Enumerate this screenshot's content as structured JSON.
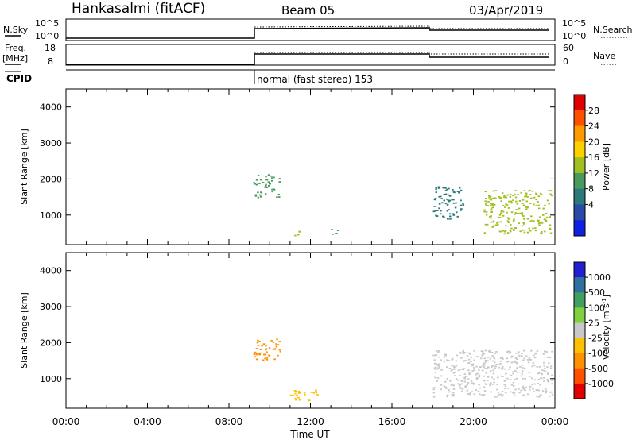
{
  "header": {
    "station": "Hankasalmi (fitACF)",
    "beam": "Beam 05",
    "date": "03/Apr/2019"
  },
  "strips": {
    "nsky_label": "N.Sky",
    "nsky_ticks": [
      "10^5",
      "10^0"
    ],
    "nsearch_label": "N.Search",
    "nsearch_ticks": [
      "10^5",
      "10^0"
    ],
    "freq_label": "Freq.",
    "freq_unit": "[MHz]",
    "freq_ticks": [
      "18",
      "8"
    ],
    "nave_label": "Nave",
    "nave_ticks": [
      "60",
      "0"
    ],
    "cpid_label": "CPID",
    "cpid_text": "normal (fast stereo) 153"
  },
  "chart_data": [
    {
      "type": "heatmap",
      "name": "power-panel",
      "ylabel": "Slant Range [km]",
      "yticks": [
        "4000",
        "3000",
        "2000",
        "1000"
      ],
      "ylim": [
        180,
        4500
      ],
      "colorbar_label": "Power [dB]",
      "colorbar_ticks": [
        "28",
        "24",
        "20",
        "16",
        "12",
        "8",
        "4"
      ],
      "colorbar_colors": [
        "#e00000",
        "#ff5000",
        "#ff9a00",
        "#ffd000",
        "#a0c020",
        "#4a9a60",
        "#2a7a7a",
        "#2a4aa8",
        "#1020e0"
      ],
      "echo_regions": [
        {
          "t_start": "09:10",
          "t_end": "10:30",
          "range_km": [
            1500,
            2150
          ],
          "level_db": 10
        },
        {
          "t_start": "11:10",
          "t_end": "11:35",
          "range_km": [
            450,
            650
          ],
          "level_db": 14
        },
        {
          "t_start": "13:00",
          "t_end": "13:20",
          "range_km": [
            450,
            650
          ],
          "level_db": 12
        },
        {
          "t_start": "18:00",
          "t_end": "19:30",
          "range_km": [
            900,
            1800
          ],
          "level_db": 6
        },
        {
          "t_start": "20:30",
          "t_end": "23:50",
          "range_km": [
            500,
            1700
          ],
          "level_db": 14
        }
      ]
    },
    {
      "type": "heatmap",
      "name": "velocity-panel",
      "ylabel": "Slant Range [km]",
      "yticks": [
        "4000",
        "3000",
        "2000",
        "1000"
      ],
      "ylim": [
        180,
        4500
      ],
      "xlabel": "Time UT",
      "xticks": [
        "00:00",
        "04:00",
        "08:00",
        "12:00",
        "16:00",
        "20:00",
        "00:00"
      ],
      "colorbar_label": "Velocity [m s",
      "colorbar_unit_exp": "-1",
      "colorbar_ticks": [
        "1000",
        "500",
        "100",
        "25",
        "-25",
        "-100",
        "-500",
        "-1000"
      ],
      "colorbar_colors": [
        "#2020d0",
        "#3070a0",
        "#40a060",
        "#80d040",
        "#c8c8c8",
        "#ffc000",
        "#ff9000",
        "#ff5000",
        "#e00000"
      ],
      "echo_regions": [
        {
          "t_start": "09:10",
          "t_end": "10:30",
          "range_km": [
            1500,
            2150
          ],
          "velocity": -300
        },
        {
          "t_start": "11:00",
          "t_end": "12:30",
          "range_km": [
            400,
            700
          ],
          "velocity": -100
        },
        {
          "t_start": "18:00",
          "t_end": "23:50",
          "range_km": [
            500,
            1800
          ],
          "velocity": 0
        }
      ]
    }
  ]
}
